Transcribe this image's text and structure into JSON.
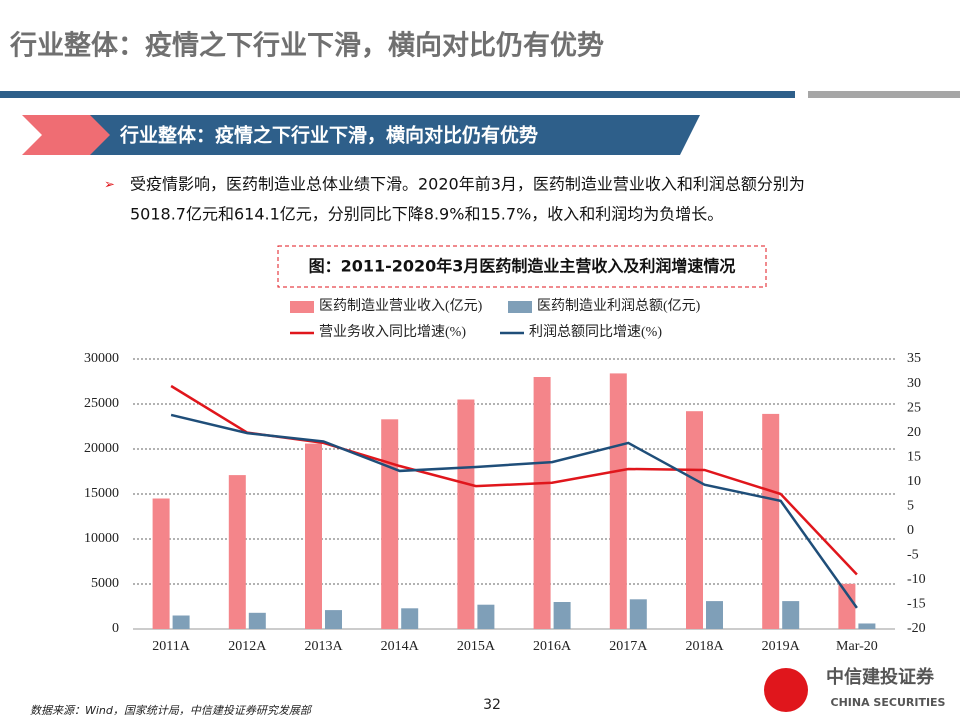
{
  "slide": {
    "title": "行业整体：疫情之下行业下滑，横向对比仍有优势",
    "banner": "行业整体：疫情之下行业下滑，横向对比仍有优势",
    "bullet": [
      "受疫情影响，医药制造业总体业绩下滑。2020年前3月，医药制造业营业收入和利润总额分别为",
      "5018.7亿元和614.1亿元，分别同比下降8.9%和15.7%，收入和利润均为负增长。"
    ],
    "source": "数据来源：Wind，国家统计局，中信建投证券研究发展部",
    "page": "32",
    "logo": "中信建投证券",
    "logo_en": "CHINA SECURITIES"
  },
  "chart_data": {
    "type": "bar",
    "title": "图：2011-2020年3月医药制造业主营收入及利润增速情况",
    "categories": [
      "2011A",
      "2012A",
      "2013A",
      "2014A",
      "2015A",
      "2016A",
      "2017A",
      "2018A",
      "2019A",
      "Mar-20"
    ],
    "series": [
      {
        "name": "医药制造业营业收入(亿元)",
        "type": "bar",
        "color": "#f4858a",
        "values": [
          14500,
          17100,
          20600,
          23300,
          25500,
          28000,
          28400,
          24200,
          23900,
          5018.7
        ]
      },
      {
        "name": "医药制造业利润总额(亿元)",
        "type": "bar",
        "color": "#7f9fb8",
        "values": [
          1500,
          1800,
          2100,
          2300,
          2700,
          3000,
          3300,
          3100,
          3100,
          614.1
        ]
      },
      {
        "name": "营业务收入同比增速(%)",
        "type": "line",
        "axis": "y2",
        "color": "#e0161c",
        "values": [
          29.5,
          20,
          17.9,
          13.2,
          9.1,
          9.8,
          12.6,
          12.4,
          7.5,
          -8.9
        ]
      },
      {
        "name": "利润总额同比增速(%)",
        "type": "line",
        "axis": "y2",
        "color": "#1f4e79",
        "values": [
          23.6,
          19.9,
          18.2,
          12.2,
          13,
          14,
          17.9,
          9.4,
          6.1,
          -15.7
        ]
      }
    ],
    "ylim": [
      0,
      30000
    ],
    "yticks": [
      0,
      5000,
      10000,
      15000,
      20000,
      25000,
      30000
    ],
    "y2lim": [
      -20,
      35
    ],
    "y2ticks": [
      -20,
      -15,
      -10,
      -5,
      0,
      5,
      10,
      15,
      20,
      25,
      30,
      35
    ],
    "grid": true
  }
}
